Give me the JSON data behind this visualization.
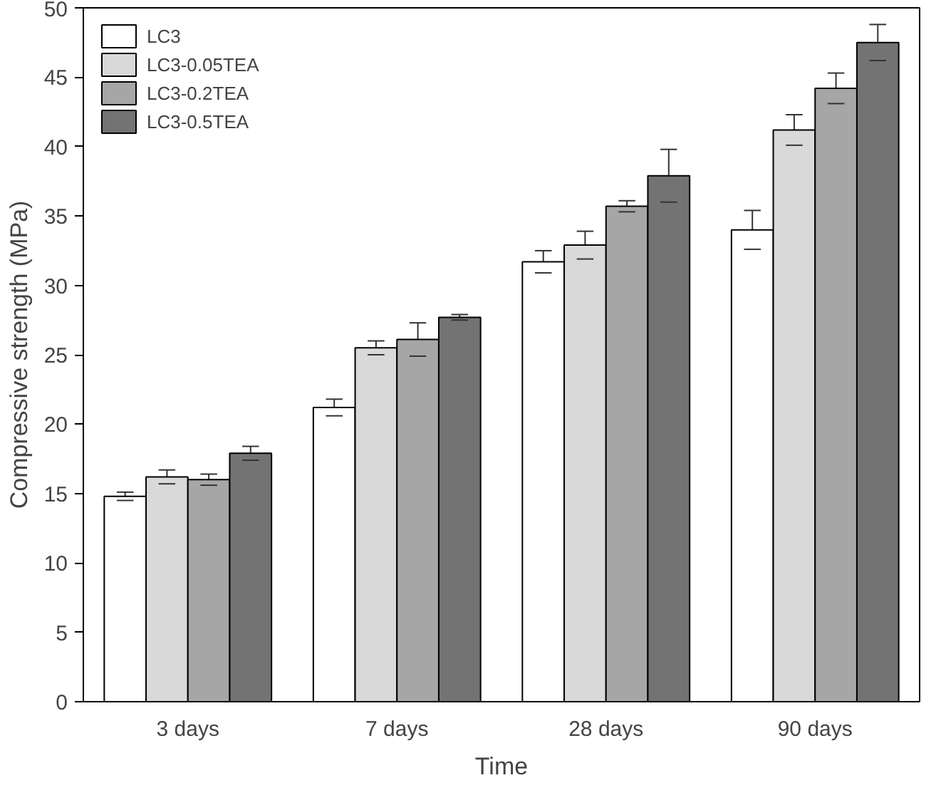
{
  "chart_data": {
    "type": "bar",
    "xlabel": "Time",
    "ylabel": "Compressive strength (MPa)",
    "categories": [
      "3 days",
      "7 days",
      "28 days",
      "90 days"
    ],
    "series": [
      {
        "name": "LC3",
        "color": "#ffffff",
        "values": [
          14.8,
          21.2,
          31.7,
          34.0
        ],
        "errors": [
          0.3,
          0.6,
          0.8,
          1.4
        ]
      },
      {
        "name": "LC3-0.05TEA",
        "color": "#d9d9d9",
        "values": [
          16.2,
          25.5,
          32.9,
          41.2
        ],
        "errors": [
          0.5,
          0.5,
          1.0,
          1.1
        ]
      },
      {
        "name": "LC3-0.2TEA",
        "color": "#a6a6a6",
        "values": [
          16.0,
          26.1,
          35.7,
          44.2
        ],
        "errors": [
          0.4,
          1.2,
          0.4,
          1.1
        ]
      },
      {
        "name": "LC3-0.5TEA",
        "color": "#737373",
        "values": [
          17.9,
          27.7,
          37.9,
          47.5
        ],
        "errors": [
          0.5,
          0.2,
          1.9,
          1.3
        ]
      }
    ],
    "ylim": [
      0,
      50
    ],
    "yticks": [
      0,
      5,
      10,
      15,
      20,
      25,
      30,
      35,
      40,
      45,
      50
    ],
    "grid": false,
    "legend": "top left"
  }
}
